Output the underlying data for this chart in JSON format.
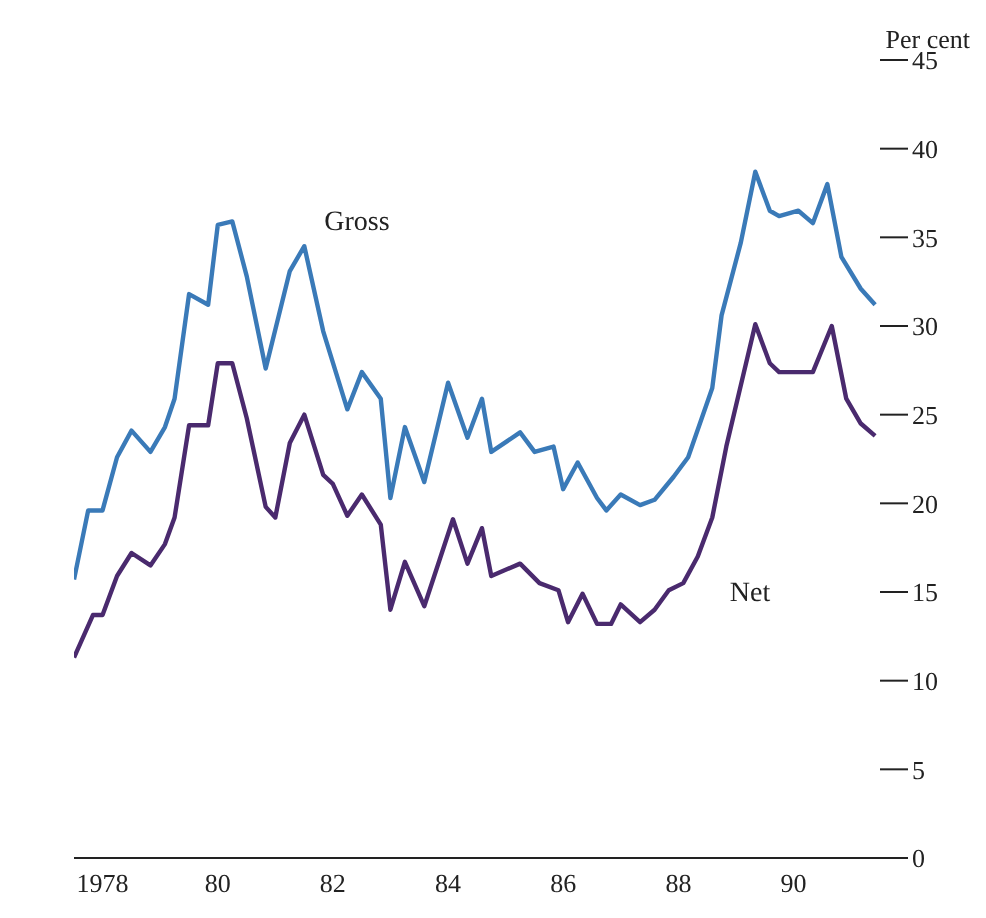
{
  "chart_data": {
    "type": "line",
    "ylabel": "Per cent",
    "xlim": [
      "1978-01",
      "1992-01"
    ],
    "xticks": [
      {
        "value": "1978-07",
        "label": "1978"
      },
      {
        "value": "1980-07",
        "label": "80"
      },
      {
        "value": "1982-07",
        "label": "82"
      },
      {
        "value": "1984-07",
        "label": "84"
      },
      {
        "value": "1986-07",
        "label": "86"
      },
      {
        "value": "1988-07",
        "label": "88"
      },
      {
        "value": "1990-07",
        "label": "90"
      }
    ],
    "ylim": [
      0,
      45
    ],
    "yticks": [
      0,
      5,
      10,
      15,
      20,
      25,
      30,
      35,
      40,
      45
    ],
    "grid": false,
    "legend": false,
    "marker": "none",
    "line_style": "solid",
    "series": [
      {
        "name": "Gross",
        "color": "#3a7ab8",
        "x": [
          "1978-01",
          "1978-04",
          "1978-07",
          "1978-10",
          "1979-01",
          "1979-05",
          "1979-08",
          "1979-10",
          "1980-01",
          "1980-05",
          "1980-07",
          "1980-10",
          "1981-01",
          "1981-05",
          "1981-10",
          "1982-01",
          "1982-05",
          "1982-10",
          "1983-01",
          "1983-05",
          "1983-07",
          "1983-10",
          "1984-02",
          "1984-07",
          "1984-11",
          "1985-02",
          "1985-04",
          "1985-10",
          "1986-01",
          "1986-05",
          "1986-07",
          "1986-10",
          "1987-02",
          "1987-04",
          "1987-07",
          "1987-11",
          "1988-02",
          "1988-06",
          "1988-09",
          "1989-02",
          "1989-04",
          "1989-08",
          "1989-11",
          "1990-02",
          "1990-04",
          "1990-08",
          "1990-11",
          "1991-02",
          "1991-05",
          "1991-09",
          "1991-12"
        ],
        "values": [
          15.7,
          19.6,
          19.6,
          22.6,
          24.1,
          22.9,
          24.3,
          25.9,
          31.8,
          31.2,
          35.7,
          35.9,
          32.8,
          27.6,
          33.1,
          34.5,
          29.7,
          25.3,
          27.4,
          25.9,
          20.3,
          24.3,
          21.2,
          26.8,
          23.7,
          25.9,
          22.9,
          24.0,
          22.9,
          23.2,
          20.8,
          22.3,
          20.3,
          19.6,
          20.5,
          19.9,
          20.2,
          21.5,
          22.6,
          26.5,
          30.6,
          34.7,
          38.7,
          36.5,
          36.2,
          36.5,
          35.8,
          38.0,
          33.9,
          32.1,
          31.2
        ]
      },
      {
        "name": "Net",
        "color": "#4a2a6e",
        "x": [
          "1978-01",
          "1978-05",
          "1978-07",
          "1978-10",
          "1979-01",
          "1979-05",
          "1979-08",
          "1979-10",
          "1980-01",
          "1980-05",
          "1980-07",
          "1980-10",
          "1981-01",
          "1981-05",
          "1981-07",
          "1981-10",
          "1982-01",
          "1982-05",
          "1982-07",
          "1982-10",
          "1983-01",
          "1983-05",
          "1983-07",
          "1983-10",
          "1984-02",
          "1984-08",
          "1984-11",
          "1985-02",
          "1985-04",
          "1985-10",
          "1986-02",
          "1986-06",
          "1986-08",
          "1986-11",
          "1987-02",
          "1987-05",
          "1987-07",
          "1987-11",
          "1988-02",
          "1988-05",
          "1988-08",
          "1988-11",
          "1989-02",
          "1989-05",
          "1989-11",
          "1990-02",
          "1990-04",
          "1990-11",
          "1991-03",
          "1991-06",
          "1991-09",
          "1991-12"
        ],
        "values": [
          11.3,
          13.7,
          13.7,
          15.9,
          17.2,
          16.5,
          17.7,
          19.2,
          24.4,
          24.4,
          27.9,
          27.9,
          24.8,
          19.8,
          19.2,
          23.4,
          25.0,
          21.6,
          21.1,
          19.3,
          20.5,
          18.8,
          14.0,
          16.7,
          14.2,
          19.1,
          16.6,
          18.6,
          15.9,
          16.6,
          15.5,
          15.1,
          13.3,
          14.9,
          13.2,
          13.2,
          14.3,
          13.3,
          14.0,
          15.1,
          15.5,
          17.0,
          19.2,
          23.2,
          30.1,
          27.9,
          27.4,
          27.4,
          30.0,
          25.9,
          24.5,
          23.8
        ]
      }
    ]
  }
}
